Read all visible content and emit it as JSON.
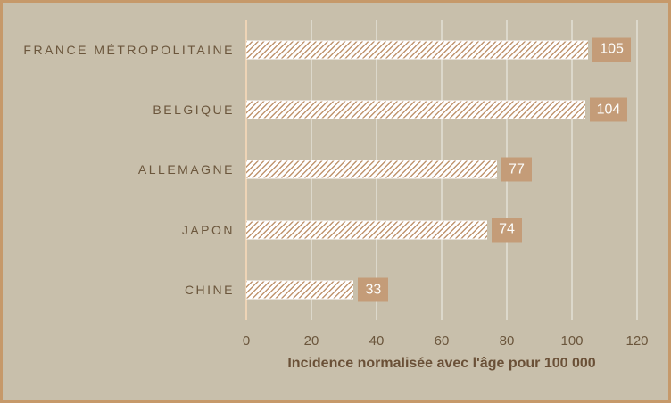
{
  "chart_data": {
    "type": "bar",
    "orientation": "horizontal",
    "title": "",
    "categories": [
      "FRANCE MÉTROPOLITAINE",
      "BELGIQUE",
      "ALLEMAGNE",
      "JAPON",
      "CHINE"
    ],
    "values": [
      105,
      104,
      77,
      74,
      33
    ],
    "data_labels": [
      "105",
      "104",
      "77",
      "74",
      "33"
    ],
    "xlabel": "Incidence normalisée avec l'âge pour 100 000",
    "ylabel": "",
    "xlim": [
      0,
      120
    ],
    "xticks": [
      0,
      20,
      40,
      60,
      80,
      100,
      120
    ],
    "grid": true,
    "legend": false
  },
  "colors": {
    "background": "#c8bfab",
    "frame_border": "#c6996a",
    "bar_hatch": "#c09670",
    "bar_fill": "#ffffff",
    "value_chip_bg": "#c49c78",
    "value_chip_text": "#fdfdfb",
    "category_text": "#6b563c",
    "tick_text": "#6b563c",
    "axis_title_text": "#6a5037",
    "gridline": "#dcd8cb",
    "zero_line": "#eed4b6"
  }
}
